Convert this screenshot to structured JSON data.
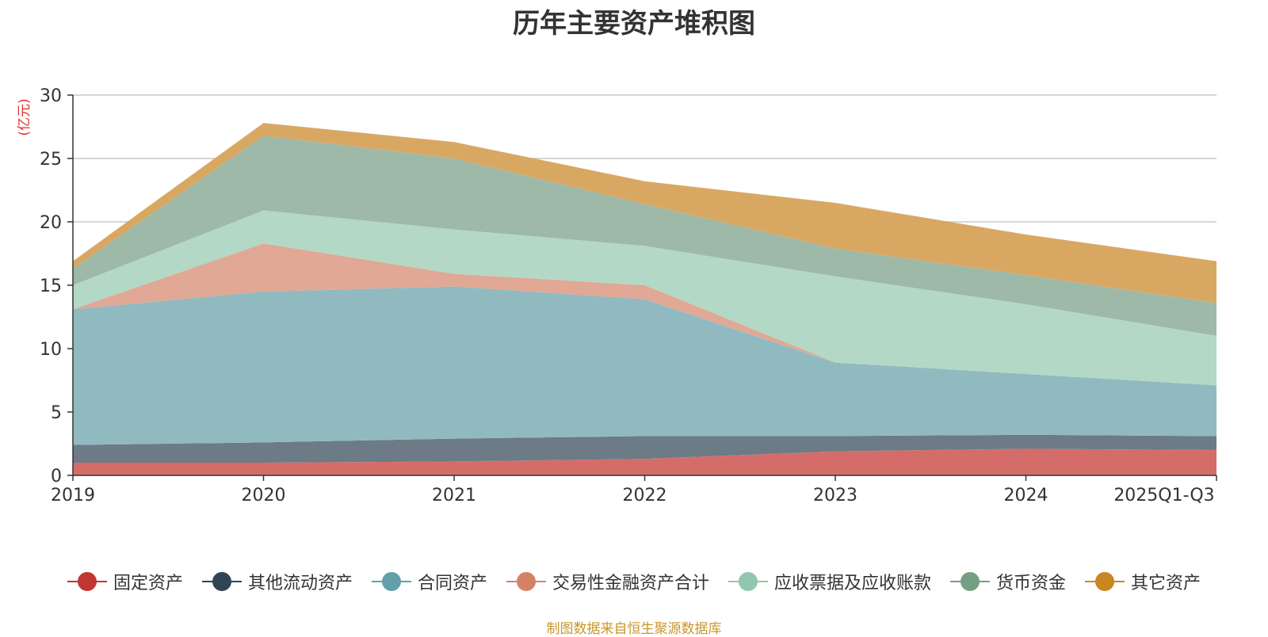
{
  "chart_data": {
    "type": "area",
    "stacked": true,
    "title": "历年主要资产堆积图",
    "ylabel": "(亿元)",
    "xlabel": "",
    "categories": [
      "2019",
      "2020",
      "2021",
      "2022",
      "2023",
      "2024",
      "2025Q1-Q3"
    ],
    "ylim": [
      0,
      30
    ],
    "yticks": [
      0,
      5,
      10,
      15,
      20,
      25,
      30
    ],
    "grid": true,
    "legend_position": "bottom",
    "series": [
      {
        "name": "固定资产",
        "color": "#c23531",
        "fill": "#d46d6a",
        "values": [
          1.0,
          1.0,
          1.1,
          1.3,
          1.9,
          2.1,
          2.0
        ]
      },
      {
        "name": "其他流动资产",
        "color": "#2f4554",
        "fill": "#6c7b85",
        "values": [
          1.4,
          1.6,
          1.8,
          1.8,
          1.2,
          1.1,
          1.1
        ]
      },
      {
        "name": "合同资产",
        "color": "#61a0a8",
        "fill": "#90bac0",
        "values": [
          10.7,
          11.9,
          12.0,
          10.8,
          5.8,
          4.8,
          4.0
        ]
      },
      {
        "name": "交易性金融资产合计",
        "color": "#d48265",
        "fill": "#e0a895",
        "values": [
          0.0,
          3.8,
          1.0,
          1.1,
          0.0,
          0.0,
          0.0
        ]
      },
      {
        "name": "应收票据及应收账款",
        "color": "#91c7ae",
        "fill": "#b3d8c6",
        "values": [
          1.9,
          2.6,
          3.5,
          3.1,
          6.8,
          5.5,
          3.9
        ]
      },
      {
        "name": "货币资金",
        "color": "#749f83",
        "fill": "#9eb9a7",
        "values": [
          1.3,
          5.9,
          5.6,
          3.3,
          2.2,
          2.3,
          2.6
        ]
      },
      {
        "name": "其它资产",
        "color": "#ca8622",
        "fill": "#d8a863",
        "values": [
          0.6,
          1.0,
          1.3,
          1.8,
          3.6,
          3.2,
          3.3
        ]
      }
    ]
  },
  "source_note": "制图数据来自恒生聚源数据库"
}
